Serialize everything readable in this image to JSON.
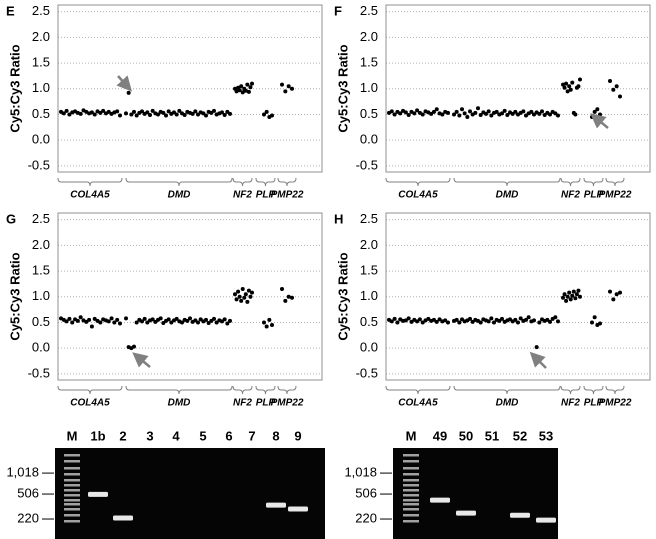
{
  "chart_data": [
    {
      "type": "scatter",
      "title": "E",
      "ylabel": "Cy5:Cy3 Ratio",
      "ylim": [
        -0.62,
        2.63
      ],
      "yticks": [
        -0.5,
        {
          "value": 0,
          "label": "0.0"
        },
        0.5,
        {
          "value": 1,
          "label": "1.0"
        },
        1.5,
        {
          "value": 2,
          "label": "2.0"
        },
        2.5
      ],
      "grid": true,
      "color": "#000000",
      "groups": [
        {
          "name": "COL4A5",
          "values": [
            0.55,
            0.52,
            0.57,
            0.5,
            0.54,
            0.56,
            0.53,
            0.51,
            0.58,
            0.55,
            0.52,
            0.54,
            0.5,
            0.56,
            0.53,
            0.57,
            0.52,
            0.55,
            0.51,
            0.54,
            0.56,
            0.48
          ]
        },
        {
          "name": "DMD",
          "values": [
            0.52,
            0.92,
            0.5,
            0.55,
            0.48,
            0.53,
            0.56,
            0.51,
            0.54,
            0.49,
            0.57,
            0.52,
            0.5,
            0.55,
            0.53,
            0.48,
            0.56,
            0.51,
            0.54,
            0.5,
            0.57,
            0.52,
            0.49,
            0.55,
            0.53,
            0.51,
            0.56,
            0.5,
            0.54,
            0.52,
            0.48,
            0.55,
            0.53,
            0.57,
            0.5,
            0.52,
            0.54,
            0.49,
            0.55,
            0.51
          ]
        },
        {
          "name": "NF2",
          "values": [
            1.0,
            0.95,
            1.02,
            0.97,
            1.05,
            0.93,
            1.0,
            0.96,
            1.08,
            0.94,
            1.03,
            1.1
          ]
        },
        {
          "name": "PLP",
          "values": [
            0.5,
            0.55,
            0.45,
            0.48
          ]
        },
        {
          "name": "PMP22",
          "values": [
            1.08,
            0.95,
            1.05,
            1.0
          ]
        }
      ]
    },
    {
      "type": "scatter",
      "title": "F",
      "ylabel": "Cy5:Cy3 Ratio",
      "ylim": [
        -0.62,
        2.63
      ],
      "yticks": [
        -0.5,
        {
          "value": 0,
          "label": "0.0"
        },
        0.5,
        {
          "value": 1,
          "label": "1.0"
        },
        1.5,
        {
          "value": 2,
          "label": "2.0"
        },
        2.5
      ],
      "grid": true,
      "color": "#000000",
      "groups": [
        {
          "name": "COL4A5",
          "values": [
            0.53,
            0.56,
            0.5,
            0.55,
            0.52,
            0.57,
            0.54,
            0.49,
            0.55,
            0.52,
            0.58,
            0.53,
            0.5,
            0.56,
            0.54,
            0.51,
            0.55,
            0.6,
            0.52,
            0.5,
            0.55,
            0.53
          ]
        },
        {
          "name": "DMD",
          "values": [
            0.5,
            0.55,
            0.48,
            0.6,
            0.52,
            0.45,
            0.56,
            0.5,
            0.53,
            0.62,
            0.49,
            0.54,
            0.51,
            0.56,
            0.48,
            0.53,
            0.55,
            0.5,
            0.52,
            0.57,
            0.49,
            0.54,
            0.51,
            0.55,
            0.5,
            0.53,
            0.56,
            0.48,
            0.52,
            0.55,
            0.5,
            0.54,
            0.51,
            0.56,
            0.49,
            0.53,
            0.5,
            0.55,
            0.52,
            0.48
          ]
        },
        {
          "name": "NF2",
          "values": [
            1.08,
            1.02,
            1.1,
            0.95,
            1.05,
            0.98,
            1.12,
            0.53,
            0.5,
            1.02,
            1.05,
            1.18
          ]
        },
        {
          "name": "PLP",
          "values": [
            0.45,
            0.55,
            0.6,
            0.5
          ]
        },
        {
          "name": "PMP22",
          "values": [
            1.15,
            0.98,
            1.05,
            0.85
          ]
        }
      ]
    },
    {
      "type": "scatter",
      "title": "G",
      "ylabel": "Cy5:Cy3 Ratio",
      "ylim": [
        -0.62,
        2.63
      ],
      "yticks": [
        -0.5,
        {
          "value": 0,
          "label": "0.0"
        },
        0.5,
        {
          "value": 1,
          "label": "1.0"
        },
        1.5,
        {
          "value": 2,
          "label": "2.0"
        },
        2.5
      ],
      "grid": true,
      "color": "#000000",
      "groups": [
        {
          "name": "COL4A5",
          "values": [
            0.58,
            0.55,
            0.52,
            0.57,
            0.5,
            0.56,
            0.53,
            0.6,
            0.54,
            0.51,
            0.55,
            0.42,
            0.57,
            0.53,
            0.5,
            0.56,
            0.54,
            0.52,
            0.58,
            0.5,
            0.55,
            0.48
          ]
        },
        {
          "name": "DMD",
          "values": [
            0.58,
            0.02,
            0.0,
            0.03,
            0.5,
            0.55,
            0.52,
            0.57,
            0.5,
            0.54,
            0.56,
            0.51,
            0.55,
            0.58,
            0.49,
            0.53,
            0.56,
            0.5,
            0.54,
            0.57,
            0.52,
            0.5,
            0.55,
            0.53,
            0.58,
            0.51,
            0.54,
            0.5,
            0.56,
            0.52,
            0.55,
            0.49,
            0.53,
            0.57,
            0.5,
            0.54,
            0.52,
            0.56,
            0.48,
            0.53
          ]
        },
        {
          "name": "NF2",
          "values": [
            1.05,
            0.95,
            1.1,
            1.0,
            0.92,
            1.15,
            0.98,
            1.05,
            0.9,
            1.12,
            1.0,
            1.08
          ]
        },
        {
          "name": "PLP",
          "values": [
            0.5,
            0.42,
            0.55,
            0.45
          ]
        },
        {
          "name": "PMP22",
          "values": [
            1.15,
            0.92,
            1.0,
            0.98
          ]
        }
      ]
    },
    {
      "type": "scatter",
      "title": "H",
      "ylabel": "Cy5:Cy3 Ratio",
      "ylim": [
        -0.62,
        2.63
      ],
      "yticks": [
        -0.5,
        {
          "value": 0,
          "label": "0.0"
        },
        0.5,
        {
          "value": 1,
          "label": "1.0"
        },
        1.5,
        {
          "value": 2,
          "label": "2.0"
        },
        2.5
      ],
      "grid": true,
      "color": "#000000",
      "groups": [
        {
          "name": "COL4A5",
          "values": [
            0.55,
            0.52,
            0.57,
            0.5,
            0.56,
            0.53,
            0.54,
            0.58,
            0.51,
            0.55,
            0.52,
            0.56,
            0.5,
            0.54,
            0.57,
            0.53,
            0.55,
            0.51,
            0.56,
            0.52,
            0.54,
            0.5
          ]
        },
        {
          "name": "DMD",
          "values": [
            0.53,
            0.55,
            0.5,
            0.56,
            0.52,
            0.54,
            0.57,
            0.51,
            0.55,
            0.53,
            0.5,
            0.56,
            0.54,
            0.52,
            0.58,
            0.5,
            0.55,
            0.53,
            0.57,
            0.51,
            0.54,
            0.56,
            0.52,
            0.55,
            0.5,
            0.58,
            0.53,
            0.55,
            0.6,
            0.52,
            0.54,
            0.02,
            0.5,
            0.56,
            0.53,
            0.55,
            0.51,
            0.57,
            0.6,
            0.52
          ]
        },
        {
          "name": "NF2",
          "values": [
            0.98,
            1.05,
            0.92,
            1.0,
            1.08,
            0.95,
            1.02,
            1.1,
            0.97,
            1.05,
            1.12,
            1.0
          ]
        },
        {
          "name": "PLP",
          "values": [
            0.5,
            0.6,
            0.45,
            0.48
          ]
        },
        {
          "name": "PMP22",
          "values": [
            1.1,
            0.95,
            1.05,
            1.08
          ]
        }
      ]
    },
    {
      "type": "gel",
      "log_scale": true,
      "ylim": [
        2350,
        113
      ],
      "yticks": [
        {
          "value": 1018,
          "label": "1,018"
        },
        506,
        220
      ],
      "lanes": [
        "M",
        "1b",
        "2",
        "3",
        "4",
        "5",
        "6",
        "7",
        "8",
        "9"
      ],
      "bands": [
        null,
        500,
        228,
        null,
        null,
        null,
        null,
        null,
        350,
        307
      ]
    },
    {
      "type": "gel",
      "log_scale": true,
      "ylim": [
        2350,
        113
      ],
      "yticks": [
        {
          "value": 1018,
          "label": "1,018"
        },
        506,
        220
      ],
      "lanes": [
        "M",
        "49",
        "50",
        "51",
        "52",
        "53"
      ],
      "bands": [
        null,
        414,
        268,
        null,
        250,
        212
      ]
    }
  ]
}
